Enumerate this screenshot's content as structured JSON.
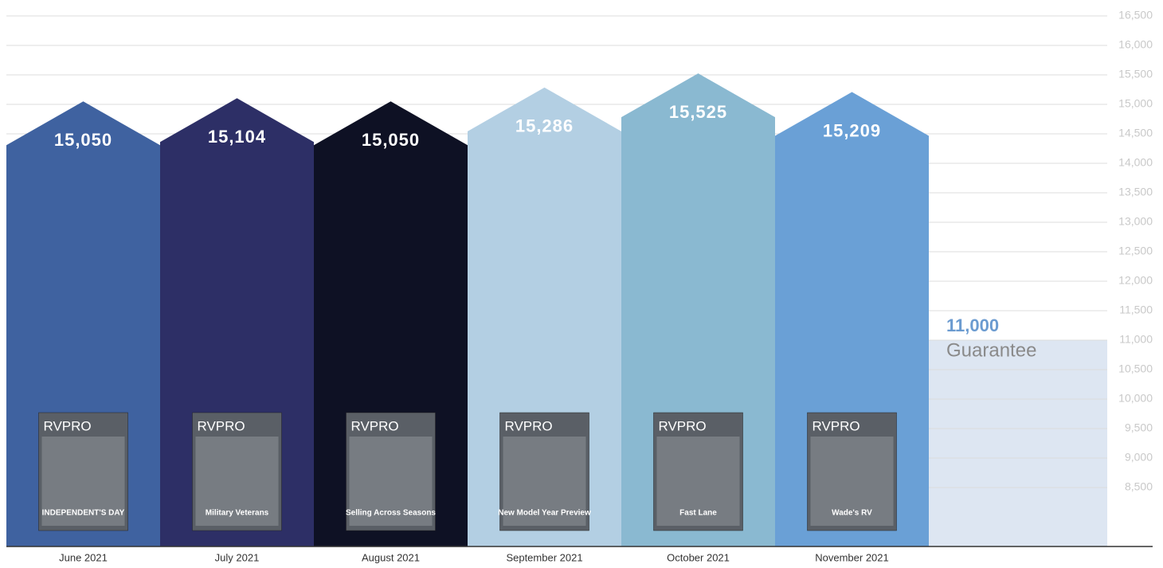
{
  "chart_data": {
    "type": "bar",
    "categories": [
      "June 2021",
      "July 2021",
      "August 2021",
      "September 2021",
      "October 2021",
      "November 2021"
    ],
    "values": [
      15050,
      15104,
      15050,
      15286,
      15525,
      15209
    ],
    "value_labels": [
      "15,050",
      "15,104",
      "15,050",
      "15,286",
      "15,525",
      "15,209"
    ],
    "colors": [
      "#3f62a0",
      "#2d2f66",
      "#0e1124",
      "#b3cfe3",
      "#8ab9d1",
      "#6aa0d6"
    ],
    "cover_masthead": "RVPRO",
    "cover_headlines": [
      "INDEPENDENT'S DAY",
      "Military Veterans",
      "Selling Across Seasons",
      "New Model Year Preview",
      "Fast Lane",
      "Wade's RV"
    ],
    "ylim": [
      7500,
      16500
    ],
    "yticks": [
      {
        "value": 8500,
        "label": "8,500"
      },
      {
        "value": 9000,
        "label": "9,000"
      },
      {
        "value": 9500,
        "label": "9,500"
      },
      {
        "value": 10000,
        "label": "10,000"
      },
      {
        "value": 10500,
        "label": "10,500"
      },
      {
        "value": 11000,
        "label": "11,000"
      },
      {
        "value": 11500,
        "label": "11,500"
      },
      {
        "value": 12000,
        "label": "12,000"
      },
      {
        "value": 12500,
        "label": "12,500"
      },
      {
        "value": 13000,
        "label": "13,000"
      },
      {
        "value": 13500,
        "label": "13,500"
      },
      {
        "value": 14000,
        "label": "14,000"
      },
      {
        "value": 14500,
        "label": "14,500"
      },
      {
        "value": 15000,
        "label": "15,000"
      },
      {
        "value": 15500,
        "label": "15,500"
      },
      {
        "value": 16000,
        "label": "16,000"
      },
      {
        "value": 16500,
        "label": "16,500"
      }
    ],
    "grid": true,
    "guarantee": {
      "value": 11000,
      "value_label": "11,000",
      "label": "Guarantee",
      "color": "#dde6f2",
      "text_color": "#6b9bd0"
    }
  }
}
